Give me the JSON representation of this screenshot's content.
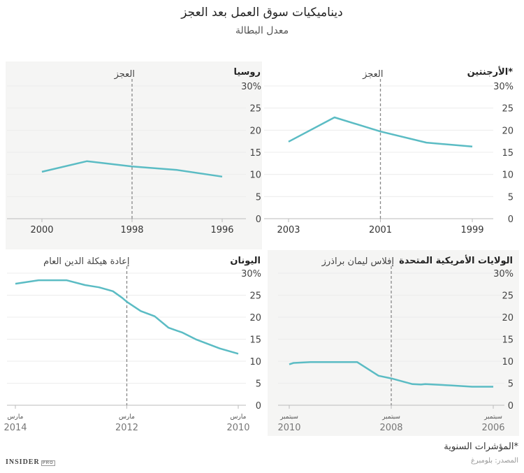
{
  "title": "ديناميكيات سوق العمل بعد العجز",
  "subtitle": "معدل البطالة",
  "footnote": "*المؤشرات السنوية",
  "source": "المصدر: بلومبرغ",
  "logo": "INSIDER",
  "logo_badge": "PRO",
  "colors": {
    "line": "#5bbcc4",
    "panel_gray": "#f5f5f4",
    "event_line": "#888888"
  },
  "chart_data": [
    {
      "id": "russia",
      "type": "line",
      "title": "روسيا",
      "event": {
        "x": 1998,
        "label": "العجز"
      },
      "x": [
        2000,
        1999,
        1998,
        1997,
        1996
      ],
      "values": [
        10.6,
        13.0,
        11.8,
        11.0,
        9.5
      ],
      "xticks": [
        {
          "x": 2000,
          "label": "2000"
        },
        {
          "x": 1998,
          "label": "1998"
        },
        {
          "x": 1996,
          "label": "1996"
        }
      ],
      "yticks": [
        "0",
        "5",
        "10",
        "15",
        "20",
        "25",
        "30%"
      ],
      "ylim": [
        0,
        30
      ],
      "x_reversed": true,
      "grid": true
    },
    {
      "id": "argentina",
      "type": "line",
      "title": "الأرجنتين*",
      "event": {
        "x": 2001,
        "label": "العجز"
      },
      "x": [
        2003,
        2002,
        2001,
        2000,
        1999
      ],
      "values": [
        17.4,
        22.9,
        19.7,
        17.2,
        16.3
      ],
      "xticks": [
        {
          "x": 2003,
          "label": "2003"
        },
        {
          "x": 2001,
          "label": "2001"
        },
        {
          "x": 1999,
          "label": "1999"
        }
      ],
      "yticks": [
        "0",
        "5",
        "10",
        "15",
        "20",
        "25",
        "30%"
      ],
      "ylim": [
        0,
        30
      ],
      "x_reversed": true,
      "grid": true
    },
    {
      "id": "greece",
      "type": "line",
      "title": "اليونان",
      "event": {
        "x": "2012-03",
        "label": "إعادة هيكلة الدين العام"
      },
      "x": [
        "2014-03",
        "2013-10",
        "2013-04",
        "2012-12",
        "2012-09",
        "2012-06",
        "2012-04",
        "2012-03",
        "2011-12",
        "2011-09",
        "2011-06",
        "2011-03",
        "2010-12",
        "2010-07",
        "2010-03"
      ],
      "values": [
        27.6,
        28.4,
        28.4,
        27.3,
        26.8,
        25.9,
        24.4,
        23.5,
        21.4,
        20.2,
        17.6,
        16.5,
        14.9,
        12.9,
        11.7
      ],
      "xticks": [
        {
          "x": "2014-03",
          "month": "مارس",
          "label": "2014"
        },
        {
          "x": "2012-03",
          "month": "مارس",
          "label": "2012"
        },
        {
          "x": "2010-03",
          "month": "مارس",
          "label": "2010"
        }
      ],
      "yticks": [
        "0",
        "5",
        "10",
        "15",
        "20",
        "25",
        "30%"
      ],
      "ylim": [
        0,
        30
      ],
      "x_reversed": true,
      "grid": true
    },
    {
      "id": "usa",
      "type": "line",
      "title": "الولايات الأمريكية المتحدة",
      "event": {
        "x": "2008-09",
        "label": "إفلاس ليمان براذرز"
      },
      "x": [
        "2010-09",
        "2010-08",
        "2010-04",
        "2009-05",
        "2008-12",
        "2008-09",
        "2008-04",
        "2008-02",
        "2008-01",
        "2007-07",
        "2007-02",
        "2006-09"
      ],
      "values": [
        9.3,
        9.6,
        9.8,
        9.8,
        6.7,
        6.1,
        4.8,
        4.7,
        4.8,
        4.5,
        4.2,
        4.2
      ],
      "xticks": [
        {
          "x": "2010-09",
          "month": "سبتمبر",
          "label": "2010"
        },
        {
          "x": "2008-09",
          "month": "سبتمبر",
          "label": "2008"
        },
        {
          "x": "2006-09",
          "month": "سبتمبر",
          "label": "2006"
        }
      ],
      "yticks": [
        "0",
        "5",
        "10",
        "15",
        "20",
        "25",
        "30%"
      ],
      "ylim": [
        0,
        30
      ],
      "x_reversed": true,
      "grid": true
    }
  ]
}
